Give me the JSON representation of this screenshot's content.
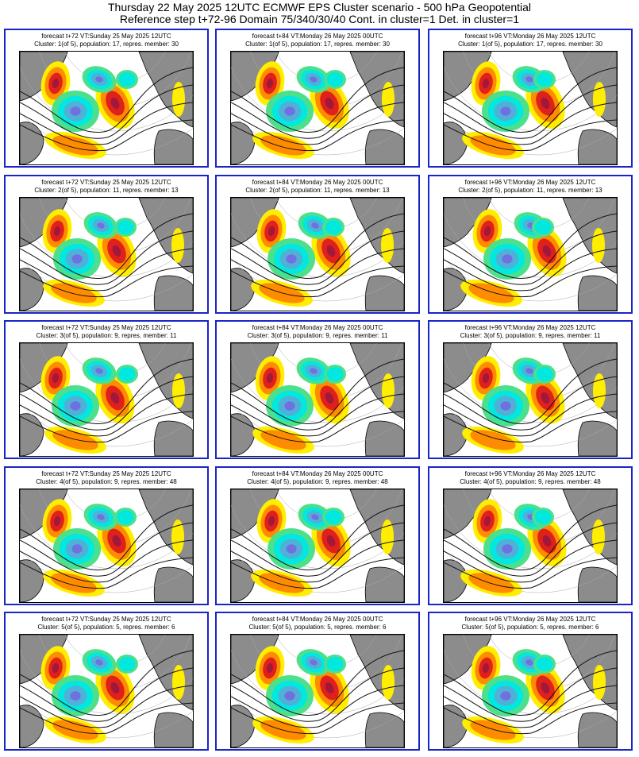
{
  "header": {
    "line1": "Thursday 22 May 2025 12UTC ECMWF EPS Cluster scenario - 500 hPa Geopotential",
    "line2": "Reference step t+72-96 Domain 75/340/30/40 Cont. in cluster=1 Det. in cluster=1"
  },
  "columns": [
    {
      "forecast": "forecast t+72 VT:Sunday 25 May 2025 12UTC"
    },
    {
      "forecast": "forecast t+84 VT:Monday 26 May 2025 00UTC"
    },
    {
      "forecast": "forecast t+96 VT:Monday 26 May 2025 12UTC"
    }
  ],
  "rows": [
    {
      "cluster": "Cluster: 1(of 5), population: 17, repres. member: 30"
    },
    {
      "cluster": "Cluster: 2(of 5), population: 11, repres. member: 13"
    },
    {
      "cluster": "Cluster: 3(of 5), population: 9, repres. member: 11"
    },
    {
      "cluster": "Cluster: 4(of 5), population: 9, repres. member: 48"
    },
    {
      "cluster": "Cluster: 5(of 5), population: 5, repres. member: 6"
    }
  ],
  "colors": {
    "frame": "#1a25c8",
    "land": "#8c8c8c",
    "ocean": "#ffffff",
    "positive_weak": "#ffee00",
    "positive_mid": "#ff8c00",
    "positive_strong": "#e0201a",
    "positive_extreme": "#a0183c",
    "negative_weak": "#4de08c",
    "negative_mid": "#00e8e0",
    "negative_strong": "#50b0d8",
    "negative_extreme": "#7070e0"
  }
}
